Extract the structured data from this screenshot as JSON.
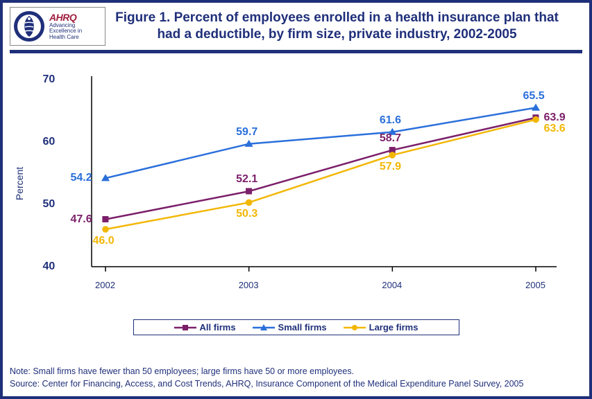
{
  "title": "Figure 1. Percent of employees enrolled in a health insurance plan that had a deductible, by firm size, private industry, 2002-2005",
  "logos": {
    "ahrq_brand": "AHRQ",
    "ahrq_line1": "Advancing",
    "ahrq_line2": "Excellence in",
    "ahrq_line3": "Health Care"
  },
  "chart": {
    "type": "line",
    "background_color": "#ffffff",
    "frame_color": "#1f2f7a",
    "y_axis_label": "Percent",
    "ylim": [
      40,
      70
    ],
    "yticks": [
      40,
      50,
      60,
      70
    ],
    "x_categories": [
      "2002",
      "2003",
      "2004",
      "2005"
    ],
    "axis_color": "#000000",
    "tick_font_size": 14,
    "series": [
      {
        "name": "All firms",
        "color": "#7b1f6a",
        "marker": "square",
        "values": [
          47.6,
          52.1,
          58.7,
          63.9
        ],
        "label_pos": [
          "left",
          "above",
          "above",
          "right"
        ]
      },
      {
        "name": "Small firms",
        "color": "#2a6fdb",
        "marker": "triangle",
        "values": [
          54.2,
          59.7,
          61.6,
          65.5
        ],
        "label_pos": [
          "left",
          "above",
          "above",
          "above"
        ]
      },
      {
        "name": "Large firms",
        "color": "#f2b705",
        "marker": "circle",
        "values": [
          46.0,
          50.3,
          57.9,
          63.6
        ],
        "label_pos": [
          "below",
          "below",
          "below",
          "right-below"
        ]
      }
    ],
    "line_width": 2.5,
    "marker_size": 6
  },
  "legend_labels": [
    "All firms",
    "Small firms",
    "Large firms"
  ],
  "footnote_note": "Note: Small firms have fewer than 50 employees; large firms have 50 or more employees.",
  "footnote_source": "Source: Center for Financing, Access, and Cost Trends, AHRQ, Insurance Component of the Medical Expenditure Panel Survey, 2005"
}
